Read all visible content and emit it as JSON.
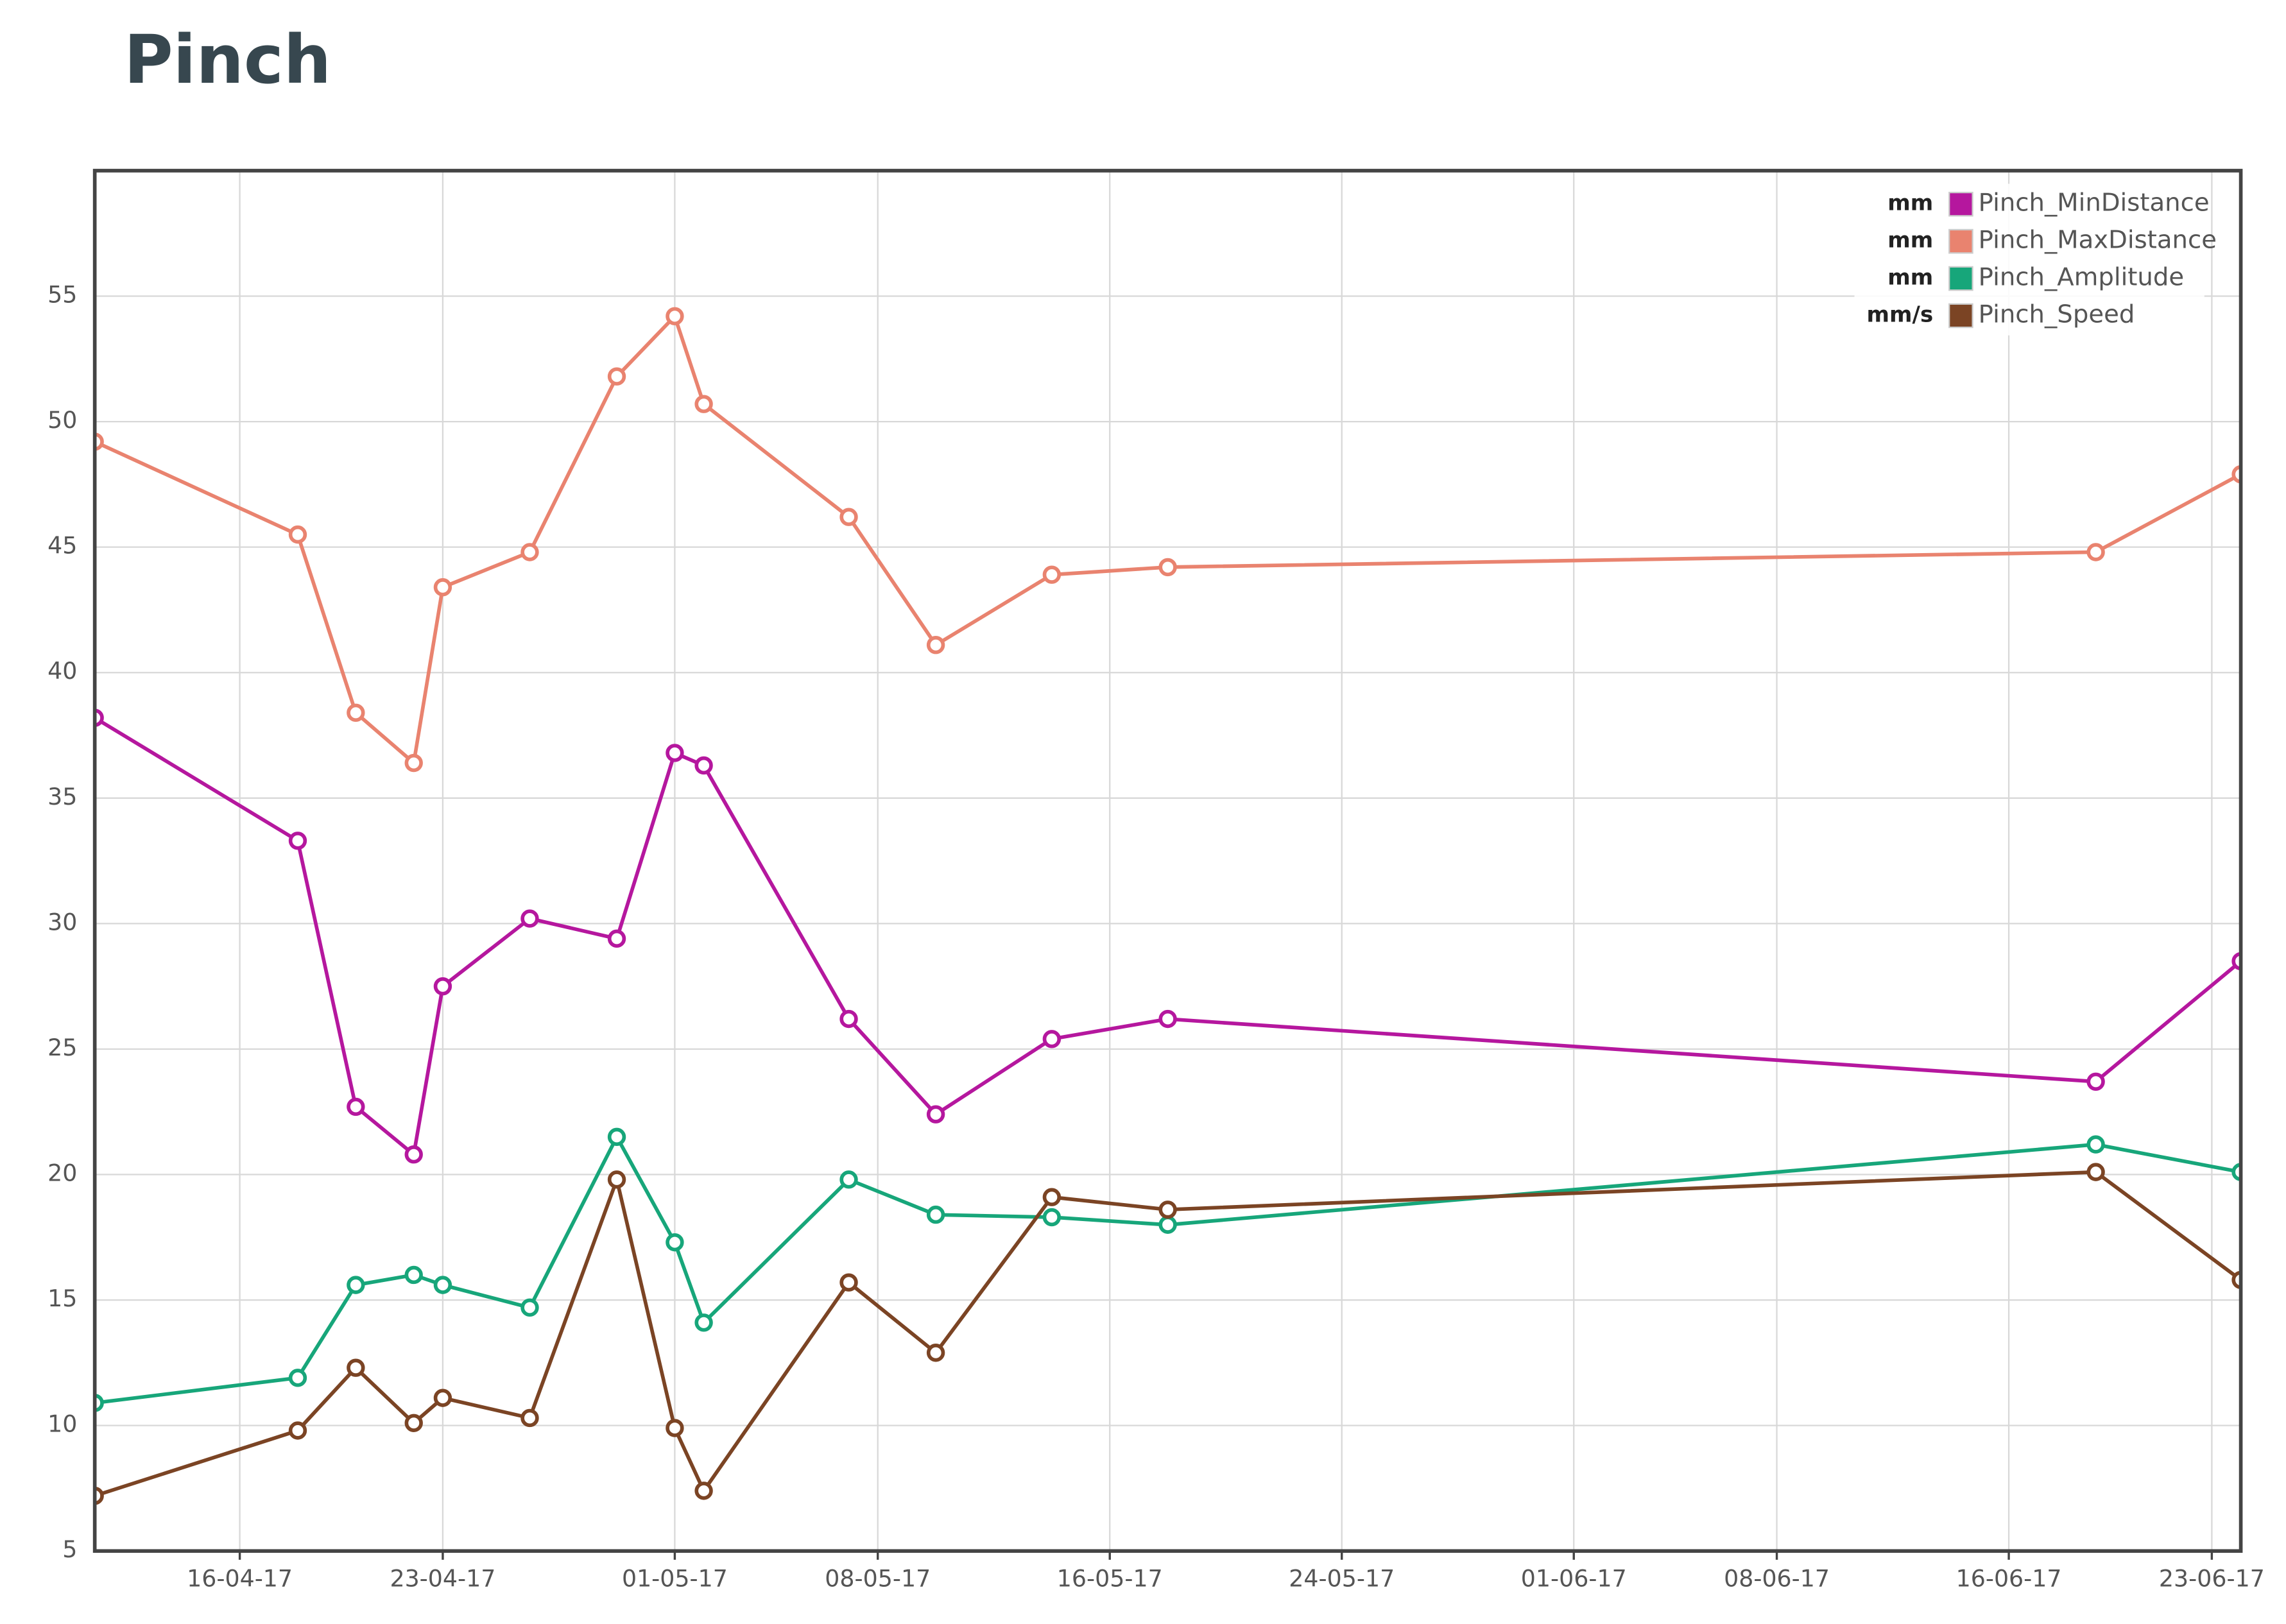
{
  "chart_data": {
    "type": "line",
    "title": "Pinch",
    "x": [
      "11-04-17",
      "18-04-17",
      "20-04-17",
      "22-04-17",
      "23-04-17",
      "26-04-17",
      "29-04-17",
      "01-05-17",
      "02-05-17",
      "07-05-17",
      "10-05-17",
      "14-05-17",
      "18-05-17",
      "19-06-17",
      "24-06-17"
    ],
    "series": [
      {
        "name": "Pinch_MinDistance",
        "unit": "mm",
        "color": "#b5179e",
        "values": [
          38.2,
          33.3,
          22.7,
          20.8,
          27.5,
          30.2,
          29.4,
          36.8,
          36.3,
          26.2,
          22.4,
          25.4,
          26.2,
          23.7,
          28.5
        ]
      },
      {
        "name": "Pinch_MaxDistance",
        "unit": "mm",
        "color": "#e9836f",
        "values": [
          49.2,
          45.5,
          38.4,
          36.4,
          43.4,
          44.8,
          51.8,
          54.2,
          50.7,
          46.2,
          41.1,
          43.9,
          44.2,
          44.8,
          47.9
        ]
      },
      {
        "name": "Pinch_Amplitude",
        "unit": "mm",
        "color": "#17a67a",
        "values": [
          10.9,
          11.9,
          15.6,
          16.0,
          15.6,
          14.7,
          21.5,
          17.3,
          14.1,
          19.8,
          18.4,
          18.3,
          18.0,
          21.2,
          20.1
        ]
      },
      {
        "name": "Pinch_Speed",
        "unit": "mm/s",
        "color": "#7b4424",
        "values": [
          7.2,
          9.8,
          12.3,
          10.1,
          11.1,
          10.3,
          19.8,
          9.9,
          7.4,
          15.7,
          12.9,
          19.1,
          18.6,
          20.1,
          15.8
        ]
      }
    ],
    "xlim": [
      "11-04-17",
      "24-06-17"
    ],
    "xticks": [
      "16-04-17",
      "23-04-17",
      "01-05-17",
      "08-05-17",
      "16-05-17",
      "24-05-17",
      "01-06-17",
      "08-06-17",
      "16-06-17",
      "23-06-17"
    ],
    "ylim": [
      5,
      60
    ],
    "yticks": [
      5,
      10,
      15,
      20,
      25,
      30,
      35,
      40,
      45,
      50,
      55
    ],
    "grid": true,
    "legend": "top-right"
  }
}
